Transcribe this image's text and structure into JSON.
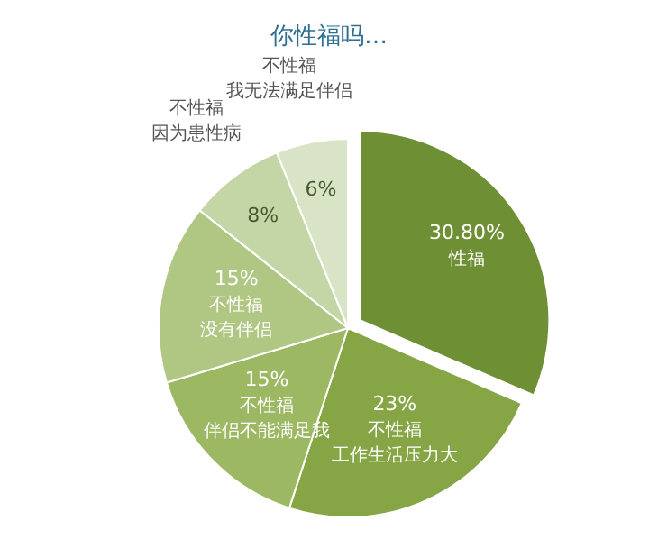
{
  "chart_data": {
    "type": "pie",
    "title": "你性福吗…",
    "categories": [
      "性福",
      "不性福工作生活压力大",
      "不性福伴侣不能满足我",
      "不性福没有伴侣",
      "不性福因为患性病",
      "不性福我无法满足伴侣"
    ],
    "values": [
      30.8,
      23,
      15,
      15,
      8,
      6
    ],
    "value_labels": [
      "30.80%",
      "23%",
      "15%",
      "15%",
      "8%",
      "6%"
    ],
    "colors": [
      "#6e8f34",
      "#86a646",
      "#9db862",
      "#b0c784",
      "#c5d6a6",
      "#d9e4c6"
    ]
  }
}
